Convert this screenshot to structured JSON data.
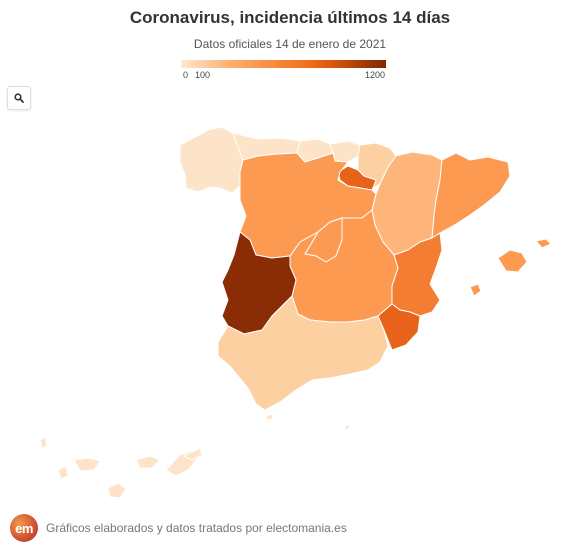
{
  "title": "Coronavirus, incidencia últimos 14 días",
  "subtitle": "Datos oficiales 14 de enero de 2021",
  "legend": {
    "min_label": "0",
    "mid_label": "100",
    "max_label": "1200",
    "color_low": "#fee8d3",
    "color_high": "#7f2704"
  },
  "search_button": {
    "icon": "search-icon"
  },
  "footer": {
    "logo_text": "em",
    "credit": "Gráficos elaborados y datos tratados por electomania.es"
  },
  "colors": {
    "lightest": "#fde3c7",
    "light": "#fdd0a2",
    "medium_light": "#fdb57a",
    "medium": "#fd9a52",
    "medium_dark": "#f37e33",
    "dark": "#e8631a",
    "darkest": "#8a2d06"
  },
  "regions": [
    {
      "name": "Galicia",
      "color": "#fde3c7"
    },
    {
      "name": "Asturias",
      "color": "#fde3c7"
    },
    {
      "name": "Cantabria",
      "color": "#fde3c7"
    },
    {
      "name": "País Vasco",
      "color": "#fde3c7"
    },
    {
      "name": "Navarra",
      "color": "#fdd0a2"
    },
    {
      "name": "La Rioja",
      "color": "#e8631a"
    },
    {
      "name": "Aragón",
      "color": "#fdb57a"
    },
    {
      "name": "Cataluña",
      "color": "#fd9a52"
    },
    {
      "name": "Castilla y León",
      "color": "#fd9a52"
    },
    {
      "name": "Madrid",
      "color": "#fd9a52"
    },
    {
      "name": "Castilla-La Mancha",
      "color": "#fd9a52"
    },
    {
      "name": "Comunidad Valenciana",
      "color": "#f37e33"
    },
    {
      "name": "Extremadura",
      "color": "#8a2d06"
    },
    {
      "name": "Andalucía",
      "color": "#fdd0a2"
    },
    {
      "name": "Murcia",
      "color": "#e8631a"
    },
    {
      "name": "Islas Baleares",
      "color": "#fd9a52"
    },
    {
      "name": "Canarias",
      "color": "#fde3c7"
    },
    {
      "name": "Ceuta",
      "color": "#fde3c7"
    },
    {
      "name": "Melilla",
      "color": "#fde3c7"
    }
  ]
}
